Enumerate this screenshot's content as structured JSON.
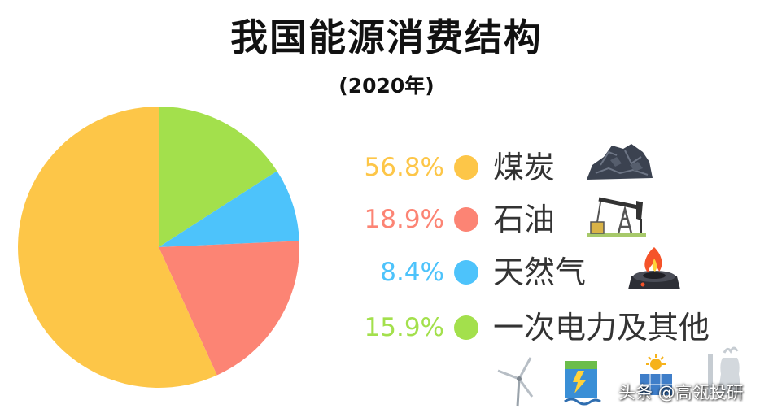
{
  "colors": {
    "coal": "#fdc648",
    "oil": "#fc8474",
    "gas": "#4dc3fb",
    "other": "#a3e04c"
  },
  "chart_data": {
    "type": "pie",
    "title": "我国能源消费结构",
    "subtitle": "(2020年)",
    "slices": [
      {
        "name": "煤炭",
        "value": 56.8,
        "label": "56.8%",
        "color": "#fdc648",
        "icon": "coal-icon"
      },
      {
        "name": "石油",
        "value": 18.9,
        "label": "18.9%",
        "color": "#fc8474",
        "icon": "oil-pump-icon"
      },
      {
        "name": "天然气",
        "value": 8.4,
        "label": "8.4%",
        "color": "#4dc3fb",
        "icon": "gas-burner-icon"
      },
      {
        "name": "一次电力及其他",
        "value": 15.9,
        "label": "15.9%",
        "color": "#a3e04c",
        "icon": "power-icons"
      }
    ],
    "legend_position": "right"
  },
  "watermark": "头条 @高瓴投研"
}
